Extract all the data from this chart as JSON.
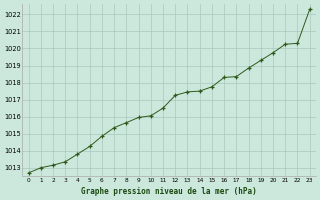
{
  "x": [
    0,
    1,
    2,
    3,
    4,
    5,
    6,
    7,
    8,
    9,
    10,
    11,
    12,
    13,
    14,
    15,
    16,
    17,
    18,
    19,
    20,
    21,
    22,
    23
  ],
  "y": [
    1012.7,
    1013.0,
    1013.15,
    1013.35,
    1013.8,
    1014.25,
    1014.85,
    1015.35,
    1015.65,
    1015.95,
    1016.05,
    1016.5,
    1017.25,
    1017.45,
    1017.5,
    1017.75,
    1018.3,
    1018.35,
    1018.85,
    1019.3,
    1019.75,
    1020.25,
    1020.3,
    1022.3
  ],
  "ylim": [
    1012.5,
    1022.6
  ],
  "xlim": [
    -0.5,
    23.5
  ],
  "yticks": [
    1013,
    1014,
    1015,
    1016,
    1017,
    1018,
    1019,
    1020,
    1021,
    1022
  ],
  "xticks": [
    0,
    1,
    2,
    3,
    4,
    5,
    6,
    7,
    8,
    9,
    10,
    11,
    12,
    13,
    14,
    15,
    16,
    17,
    18,
    19,
    20,
    21,
    22,
    23
  ],
  "xlabel": "Graphe pression niveau de la mer (hPa)",
  "line_color": "#2d5a1b",
  "marker_color": "#2d5a1b",
  "bg_color": "#cce8dc",
  "grid_color": "#aac8bc",
  "spine_color": "#aaaaaa"
}
